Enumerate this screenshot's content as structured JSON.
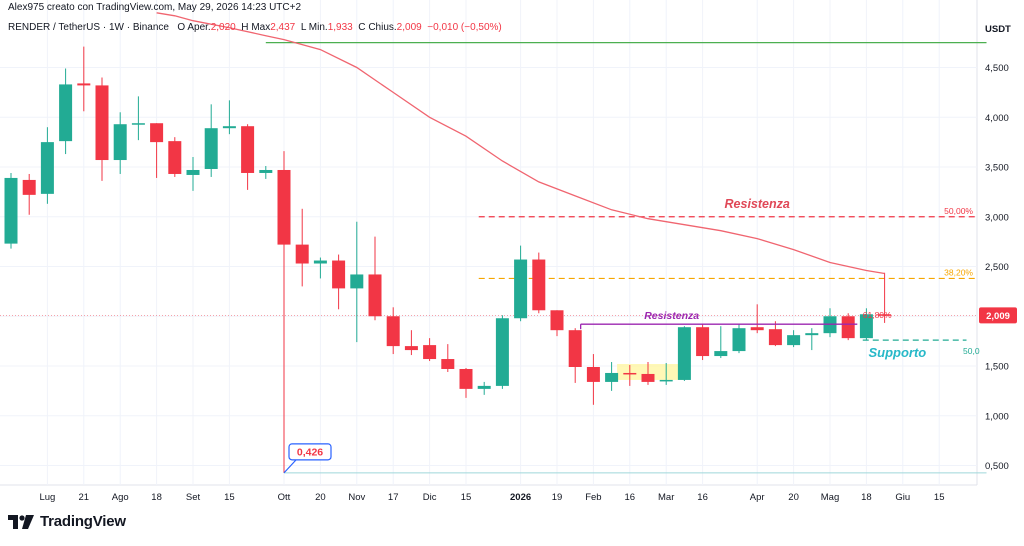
{
  "header": {
    "author_text": "Alex975 creato con TradingView.com, May 29, 2026 14:23 UTC+2"
  },
  "legend": {
    "symbol": "RENDER / TetherUS · 1W · Binance",
    "open_label": "O",
    "open_prefix": "Aper.",
    "open_value": "2,020",
    "high_label": "H",
    "high_prefix": "Max",
    "high_value": "2,437",
    "low_label": "L",
    "low_prefix": "Min.",
    "low_value": "1,933",
    "close_label": "C",
    "close_prefix": "Chius.",
    "close_value": "2,009",
    "change": "−0,010 (−0,50%)"
  },
  "brand": {
    "name": "TradingView"
  },
  "chart_data": {
    "type": "candlestick",
    "currency_label": "USDT",
    "ylim": [
      0.0,
      5.0
    ],
    "y_ticks": [
      {
        "value": 0.5,
        "label": "0,500"
      },
      {
        "value": 1.0,
        "label": "1,000"
      },
      {
        "value": 1.5,
        "label": "1,500"
      },
      {
        "value": 2.0,
        "label": "2,000"
      },
      {
        "value": 2.5,
        "label": "2,500"
      },
      {
        "value": 3.0,
        "label": "3,000"
      },
      {
        "value": 3.5,
        "label": "3,500"
      },
      {
        "value": 4.0,
        "label": "4,000"
      },
      {
        "value": 4.5,
        "label": "4,500"
      }
    ],
    "x_ticks": [
      {
        "i": 2,
        "label": "Lug"
      },
      {
        "i": 4,
        "label": "21"
      },
      {
        "i": 6,
        "label": "Ago"
      },
      {
        "i": 8,
        "label": "18"
      },
      {
        "i": 10,
        "label": "Set"
      },
      {
        "i": 12,
        "label": "15"
      },
      {
        "i": 15,
        "label": "Ott"
      },
      {
        "i": 17,
        "label": "20"
      },
      {
        "i": 19,
        "label": "Nov"
      },
      {
        "i": 21,
        "label": "17"
      },
      {
        "i": 23,
        "label": "Dic"
      },
      {
        "i": 25,
        "label": "15"
      },
      {
        "i": 28,
        "label": "2026",
        "bold": true
      },
      {
        "i": 30,
        "label": "19"
      },
      {
        "i": 32,
        "label": "Feb"
      },
      {
        "i": 34,
        "label": "16"
      },
      {
        "i": 36,
        "label": "Mar"
      },
      {
        "i": 38,
        "label": "16"
      },
      {
        "i": 41,
        "label": "Apr"
      },
      {
        "i": 43,
        "label": "20"
      },
      {
        "i": 45,
        "label": "Mag"
      },
      {
        "i": 47,
        "label": "18"
      },
      {
        "i": 49,
        "label": "Giu"
      },
      {
        "i": 51,
        "label": "15"
      }
    ],
    "candles": [
      {
        "o": 2.73,
        "h": 3.44,
        "l": 2.68,
        "c": 3.39
      },
      {
        "o": 3.37,
        "h": 3.43,
        "l": 3.02,
        "c": 3.22
      },
      {
        "o": 3.23,
        "h": 3.9,
        "l": 3.13,
        "c": 3.75
      },
      {
        "o": 3.76,
        "h": 4.49,
        "l": 3.63,
        "c": 4.33
      },
      {
        "o": 4.34,
        "h": 4.71,
        "l": 4.06,
        "c": 4.32
      },
      {
        "o": 4.32,
        "h": 4.4,
        "l": 3.36,
        "c": 3.57
      },
      {
        "o": 3.57,
        "h": 4.05,
        "l": 3.43,
        "c": 3.93
      },
      {
        "o": 3.93,
        "h": 4.21,
        "l": 3.77,
        "c": 3.94
      },
      {
        "o": 3.94,
        "h": 3.94,
        "l": 3.39,
        "c": 3.75
      },
      {
        "o": 3.76,
        "h": 3.8,
        "l": 3.4,
        "c": 3.43
      },
      {
        "o": 3.42,
        "h": 3.6,
        "l": 3.26,
        "c": 3.47
      },
      {
        "o": 3.48,
        "h": 4.13,
        "l": 3.4,
        "c": 3.89
      },
      {
        "o": 3.89,
        "h": 4.17,
        "l": 3.83,
        "c": 3.91
      },
      {
        "o": 3.91,
        "h": 3.93,
        "l": 3.27,
        "c": 3.44
      },
      {
        "o": 3.44,
        "h": 3.51,
        "l": 3.38,
        "c": 3.47
      },
      {
        "o": 3.47,
        "h": 3.66,
        "l": 0.426,
        "c": 2.72
      },
      {
        "o": 2.72,
        "h": 3.08,
        "l": 2.3,
        "c": 2.53
      },
      {
        "o": 2.53,
        "h": 2.59,
        "l": 2.38,
        "c": 2.56
      },
      {
        "o": 2.56,
        "h": 2.62,
        "l": 2.07,
        "c": 2.28
      },
      {
        "o": 2.28,
        "h": 2.95,
        "l": 1.74,
        "c": 2.42
      },
      {
        "o": 2.42,
        "h": 2.8,
        "l": 1.96,
        "c": 2.0
      },
      {
        "o": 2.0,
        "h": 2.09,
        "l": 1.62,
        "c": 1.7
      },
      {
        "o": 1.7,
        "h": 1.86,
        "l": 1.61,
        "c": 1.66
      },
      {
        "o": 1.71,
        "h": 1.78,
        "l": 1.55,
        "c": 1.57
      },
      {
        "o": 1.57,
        "h": 1.72,
        "l": 1.44,
        "c": 1.47
      },
      {
        "o": 1.47,
        "h": 1.48,
        "l": 1.18,
        "c": 1.27
      },
      {
        "o": 1.27,
        "h": 1.34,
        "l": 1.21,
        "c": 1.3
      },
      {
        "o": 1.3,
        "h": 2.01,
        "l": 1.27,
        "c": 1.98
      },
      {
        "o": 1.98,
        "h": 2.71,
        "l": 1.95,
        "c": 2.57
      },
      {
        "o": 2.57,
        "h": 2.64,
        "l": 2.03,
        "c": 2.06
      },
      {
        "o": 2.06,
        "h": 2.06,
        "l": 1.8,
        "c": 1.86
      },
      {
        "o": 1.86,
        "h": 1.88,
        "l": 1.33,
        "c": 1.49
      },
      {
        "o": 1.49,
        "h": 1.62,
        "l": 1.11,
        "c": 1.34
      },
      {
        "o": 1.34,
        "h": 1.54,
        "l": 1.25,
        "c": 1.43
      },
      {
        "o": 1.43,
        "h": 1.51,
        "l": 1.3,
        "c": 1.42
      },
      {
        "o": 1.42,
        "h": 1.54,
        "l": 1.31,
        "c": 1.34
      },
      {
        "o": 1.35,
        "h": 1.53,
        "l": 1.31,
        "c": 1.36
      },
      {
        "o": 1.36,
        "h": 1.9,
        "l": 1.35,
        "c": 1.89
      },
      {
        "o": 1.89,
        "h": 1.92,
        "l": 1.56,
        "c": 1.6
      },
      {
        "o": 1.6,
        "h": 1.9,
        "l": 1.58,
        "c": 1.65
      },
      {
        "o": 1.65,
        "h": 1.92,
        "l": 1.63,
        "c": 1.88
      },
      {
        "o": 1.89,
        "h": 2.12,
        "l": 1.83,
        "c": 1.86
      },
      {
        "o": 1.87,
        "h": 1.95,
        "l": 1.7,
        "c": 1.71
      },
      {
        "o": 1.71,
        "h": 1.86,
        "l": 1.69,
        "c": 1.81
      },
      {
        "o": 1.81,
        "h": 1.88,
        "l": 1.66,
        "c": 1.83
      },
      {
        "o": 1.83,
        "h": 2.08,
        "l": 1.79,
        "c": 2.0
      },
      {
        "o": 2.0,
        "h": 2.03,
        "l": 1.76,
        "c": 1.78
      },
      {
        "o": 1.78,
        "h": 2.08,
        "l": 1.76,
        "c": 2.02
      },
      {
        "o": 2.02,
        "h": 2.437,
        "l": 1.933,
        "c": 2.009
      }
    ],
    "moving_average": [
      {
        "i": 8,
        "v": 5.05
      },
      {
        "i": 9,
        "v": 5.02
      },
      {
        "i": 10,
        "v": 4.97
      },
      {
        "i": 12,
        "v": 4.9
      },
      {
        "i": 14,
        "v": 4.82
      },
      {
        "i": 15,
        "v": 4.78
      },
      {
        "i": 17,
        "v": 4.68
      },
      {
        "i": 19,
        "v": 4.5
      },
      {
        "i": 21,
        "v": 4.25
      },
      {
        "i": 23,
        "v": 4.0
      },
      {
        "i": 25,
        "v": 3.81
      },
      {
        "i": 27,
        "v": 3.56
      },
      {
        "i": 29,
        "v": 3.35
      },
      {
        "i": 31,
        "v": 3.21
      },
      {
        "i": 33,
        "v": 3.07
      },
      {
        "i": 35,
        "v": 2.98
      },
      {
        "i": 37,
        "v": 2.92
      },
      {
        "i": 39,
        "v": 2.86
      },
      {
        "i": 41,
        "v": 2.78
      },
      {
        "i": 43,
        "v": 2.67
      },
      {
        "i": 45,
        "v": 2.54
      },
      {
        "i": 47,
        "v": 2.46
      },
      {
        "i": 48,
        "v": 2.43
      }
    ],
    "current_price": {
      "value": 2.009,
      "label": "2,009"
    },
    "horizontal_lines": [
      {
        "value": 4.75,
        "color": "#4caf50",
        "from_i": 14.0,
        "to_i": 53.6
      },
      {
        "value": 0.426,
        "color": "#9fd8da",
        "from_i": 15.0,
        "to_i": 53.6
      }
    ],
    "fib_levels": [
      {
        "value": 3.0,
        "label": "50,00%",
        "color": "#f23645",
        "from_i": 25.7
      },
      {
        "value": 2.38,
        "label": "38,20%",
        "color": "#f7a600",
        "from_i": 25.7
      },
      {
        "value": 1.76,
        "label": "50,0",
        "color": "#22ab94",
        "from_i": 46.8,
        "to_i": 52.5
      }
    ],
    "fib_inline_label": "61,80%",
    "annotations": [
      {
        "text": "Resistenza",
        "value": 3.09,
        "i": 41.0,
        "color": "#e04857"
      },
      {
        "text": "Resistenza",
        "value": 1.97,
        "i": 36.3,
        "color": "#9c27b0"
      },
      {
        "text": "Supporto",
        "value": 1.59,
        "i": 48.7,
        "color": "#26b8c8"
      }
    ],
    "resistance_segment": {
      "value": 1.92,
      "from_i": 31.3,
      "to_i": 46.5,
      "color": "#9c27b0"
    },
    "highlight_zone": {
      "from_i": 33.3,
      "to_i": 37.0,
      "low": 1.36,
      "high": 1.52,
      "color": "#fff59d"
    },
    "low_callout": {
      "label": "0,426",
      "i": 15.0,
      "value": 0.426
    }
  }
}
